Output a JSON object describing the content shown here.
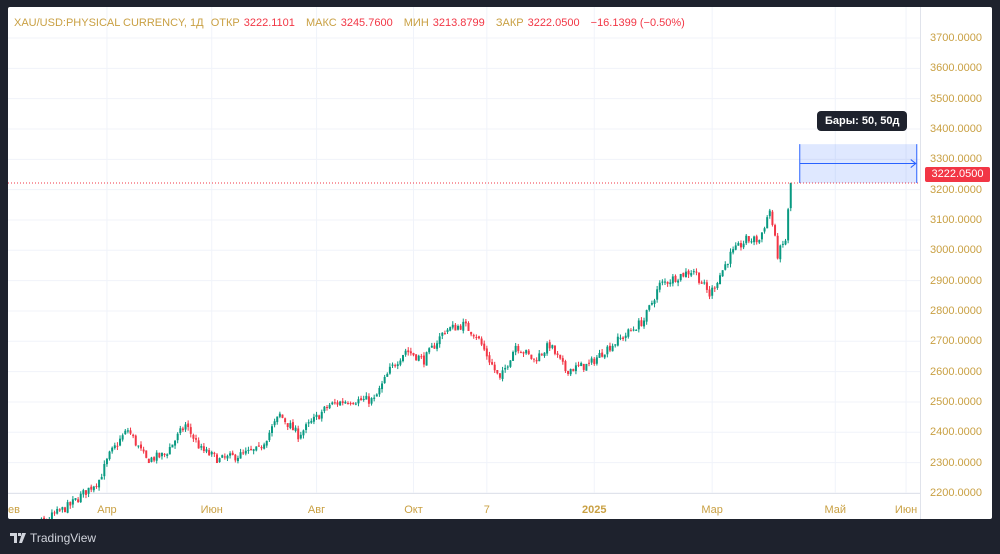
{
  "legend": {
    "symbol": "XAU/USD:PHYSICAL CURRENCY, 1Д",
    "open_label": "ОТКР",
    "open": "3222.1101",
    "high_label": "МАКС",
    "high": "3245.7600",
    "low_label": "МИН",
    "low": "3213.8799",
    "close_label": "ЗАКР",
    "close": "3222.0500",
    "change": "−16.1399 (−0.50%)"
  },
  "last_price_label": "3222.0500",
  "measure_tooltip": "Бары: 50, 50д",
  "brand": "TradingView",
  "colors": {
    "up": "#089981",
    "down": "#f23645",
    "axis_text": "#c9a043",
    "measure": "#2962ff"
  },
  "chart_data": {
    "type": "candlestick",
    "title": "XAU/USD:PHYSICAL CURRENCY, 1Д",
    "ylim": [
      2200,
      3700
    ],
    "y_ticks": [
      "3700.0000",
      "3600.0000",
      "3500.0000",
      "3400.0000",
      "3300.0000",
      "3200.0000",
      "3100.0000",
      "3000.0000",
      "2900.0000",
      "2800.0000",
      "2700.0000",
      "2600.0000",
      "2500.0000",
      "2400.0000",
      "2300.0000",
      "2200.0000"
    ],
    "x_ticks": [
      {
        "label": "ев",
        "bar": -1
      },
      {
        "label": "Апр",
        "bar": 37
      },
      {
        "label": "Июн",
        "bar": 77
      },
      {
        "label": "Авг",
        "bar": 117
      },
      {
        "label": "Окт",
        "bar": 154
      },
      {
        "label": "7",
        "bar": 182
      },
      {
        "label": "2025",
        "bar": 223,
        "bold": true
      },
      {
        "label": "Мар",
        "bar": 268
      },
      {
        "label": "Май",
        "bar": 315
      },
      {
        "label": "Июн",
        "bar": 342
      }
    ],
    "bar_count": 299,
    "close_path": [
      [
        0,
        2040
      ],
      [
        23,
        2160
      ],
      [
        34,
        2243
      ],
      [
        38,
        2325
      ],
      [
        42,
        2375
      ],
      [
        45,
        2408
      ],
      [
        52,
        2309
      ],
      [
        59,
        2325
      ],
      [
        67,
        2424
      ],
      [
        73,
        2342
      ],
      [
        80,
        2309
      ],
      [
        88,
        2325
      ],
      [
        95,
        2342
      ],
      [
        103,
        2457
      ],
      [
        110,
        2391
      ],
      [
        116,
        2440
      ],
      [
        122,
        2490
      ],
      [
        129,
        2506
      ],
      [
        139,
        2506
      ],
      [
        145,
        2605
      ],
      [
        151,
        2671
      ],
      [
        158,
        2638
      ],
      [
        166,
        2737
      ],
      [
        173,
        2754
      ],
      [
        178,
        2721
      ],
      [
        183,
        2638
      ],
      [
        187,
        2572
      ],
      [
        193,
        2688
      ],
      [
        200,
        2638
      ],
      [
        206,
        2688
      ],
      [
        212,
        2605
      ],
      [
        221,
        2622
      ],
      [
        227,
        2671
      ],
      [
        235,
        2721
      ],
      [
        242,
        2770
      ],
      [
        248,
        2886
      ],
      [
        256,
        2919
      ],
      [
        261,
        2935
      ],
      [
        267,
        2853
      ],
      [
        275,
        2985
      ],
      [
        281,
        3034
      ],
      [
        286,
        3034
      ],
      [
        290,
        3133
      ],
      [
        293,
        2985
      ],
      [
        296,
        3034
      ],
      [
        298,
        3222
      ]
    ],
    "last_close": 3222.05,
    "measure": {
      "bars": 50,
      "days": 50
    }
  }
}
